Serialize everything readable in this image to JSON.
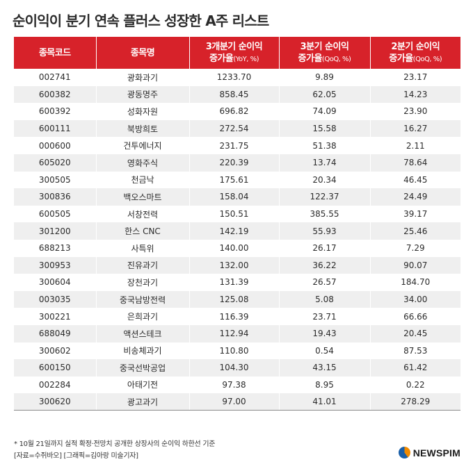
{
  "title": "순이익이 분기 연속 플러스 성장한 A주 리스트",
  "headers": {
    "code": "종목코드",
    "name": "종목명",
    "col3_line1": "3개분기 순이익",
    "col3_line2": "증가율",
    "col3_unit": "(YoY, %)",
    "col4_line1": "3분기 순이익",
    "col4_line2": "증가율",
    "col4_unit": "(QoQ, %)",
    "col5_line1": "2분기 순이익",
    "col5_line2": "증가율",
    "col5_unit": "(QoQ, %)"
  },
  "rows": [
    [
      "002741",
      "광화과기",
      "1233.70",
      "9.89",
      "23.17"
    ],
    [
      "600382",
      "광동명주",
      "858.45",
      "62.05",
      "14.23"
    ],
    [
      "600392",
      "성화자원",
      "696.82",
      "74.09",
      "23.90"
    ],
    [
      "600111",
      "북방희토",
      "272.54",
      "15.58",
      "16.27"
    ],
    [
      "000600",
      "건투에너지",
      "231.75",
      "51.38",
      "2.11"
    ],
    [
      "605020",
      "영화주식",
      "220.39",
      "13.74",
      "78.64"
    ],
    [
      "300505",
      "천금낙",
      "175.61",
      "20.34",
      "46.45"
    ],
    [
      "300836",
      "백오스마트",
      "158.04",
      "122.37",
      "24.49"
    ],
    [
      "600505",
      "서창전력",
      "150.51",
      "385.55",
      "39.17"
    ],
    [
      "301200",
      "한스 CNC",
      "142.19",
      "55.93",
      "25.46"
    ],
    [
      "688213",
      "사특위",
      "140.00",
      "26.17",
      "7.29"
    ],
    [
      "300953",
      "진유과기",
      "132.00",
      "36.22",
      "90.07"
    ],
    [
      "300604",
      "장천과기",
      "131.39",
      "26.57",
      "184.70"
    ],
    [
      "003035",
      "중국남방전력",
      "125.08",
      "5.08",
      "34.00"
    ],
    [
      "300221",
      "은희과기",
      "116.39",
      "23.71",
      "66.66"
    ],
    [
      "688049",
      "액션스테크",
      "112.94",
      "19.43",
      "20.45"
    ],
    [
      "300602",
      "비송체과기",
      "110.80",
      "0.54",
      "87.53"
    ],
    [
      "600150",
      "중국선박공업",
      "104.30",
      "43.15",
      "61.42"
    ],
    [
      "002284",
      "아태기전",
      "97.38",
      "8.95",
      "0.22"
    ],
    [
      "300620",
      "광고과기",
      "97.00",
      "41.01",
      "278.29"
    ]
  ],
  "footnote_line1": "* 10월 21일까지 실적 확정·전망치 공개한 상장사의 순이익 하한선 기준",
  "footnote_line2": "[자료=수쥐바오] [그래픽=김아랑 미술기자]",
  "logo_text": "NEWSPIM"
}
